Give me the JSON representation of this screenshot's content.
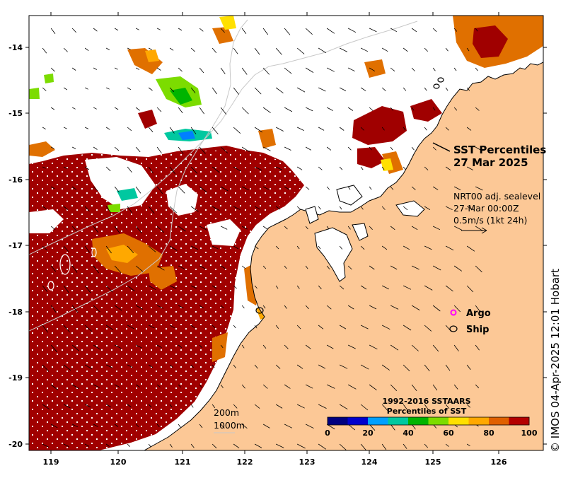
{
  "map": {
    "title_line1": "SST Percentiles",
    "title_line2": "27 Mar 2025",
    "current_info": [
      "NRT00 adj. sealevel",
      "27-Mar 00:00Z",
      "0.5m/s (1kt 24h)"
    ],
    "legend_markers": [
      {
        "label": "Argo",
        "marker": "magenta-circle",
        "color": "#ff00ff"
      },
      {
        "label": "Ship",
        "marker": "black-ellipse",
        "color": "#000000"
      }
    ],
    "isobath_labels": [
      "200m",
      "1000m"
    ],
    "credit": "© IMOS 04-Apr-2025 12:01 Hobart",
    "colorbar": {
      "title_line1": "1992-2016 SSTAARS",
      "title_line2": "Percentiles of SST",
      "ticks": [
        "0",
        "20",
        "40",
        "60",
        "80",
        "100"
      ],
      "colors": [
        "#000080",
        "#0000cd",
        "#00a0ff",
        "#00c8a0",
        "#00b400",
        "#7cdc00",
        "#ffe000",
        "#ffa800",
        "#e06000",
        "#b40000"
      ]
    },
    "axes": {
      "x_ticks": [
        "119",
        "120",
        "121",
        "122",
        "123",
        "124",
        "125",
        "126"
      ],
      "y_ticks": [
        "-14",
        "-15",
        "-16",
        "-17",
        "-18",
        "-19",
        "-20"
      ]
    },
    "colors": {
      "land": "#fcc896",
      "high_percentile": "#a00000",
      "no_data": "#ffffff"
    }
  }
}
